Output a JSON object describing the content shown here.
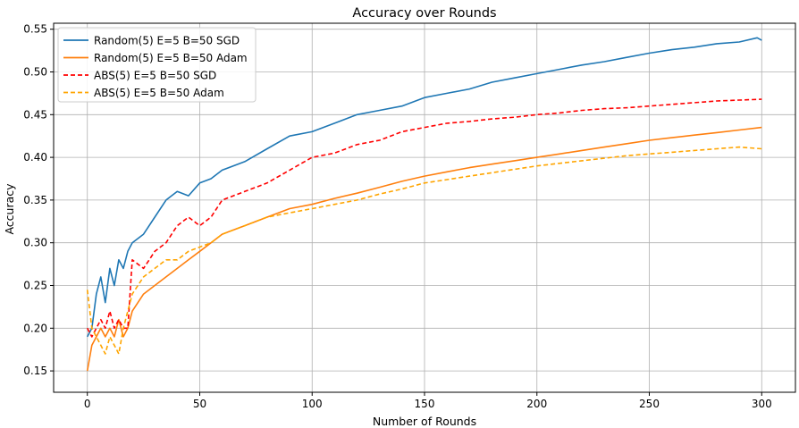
{
  "chart_data": {
    "type": "line",
    "title": "Accuracy over Rounds",
    "xlabel": "Number of Rounds",
    "ylabel": "Accuracy",
    "xlim": [
      -15,
      315
    ],
    "ylim": [
      0.125,
      0.557
    ],
    "xticks": [
      0,
      50,
      100,
      150,
      200,
      250,
      300
    ],
    "xtick_labels": [
      "0",
      "50",
      "100",
      "150",
      "200",
      "250",
      "300"
    ],
    "yticks": [
      0.15,
      0.2,
      0.25,
      0.3,
      0.35,
      0.4,
      0.45,
      0.5,
      0.55
    ],
    "ytick_labels": [
      "0.15",
      "0.20",
      "0.25",
      "0.30",
      "0.35",
      "0.40",
      "0.45",
      "0.50",
      "0.55"
    ],
    "grid": true,
    "legend_position": "top-left",
    "series": [
      {
        "name": "Random(5) E=5 B=50 SGD",
        "color": "#1f77b4",
        "dash": "solid",
        "x": [
          0,
          2,
          4,
          6,
          8,
          10,
          12,
          14,
          16,
          18,
          20,
          25,
          30,
          35,
          40,
          45,
          50,
          55,
          60,
          70,
          80,
          90,
          100,
          110,
          120,
          130,
          140,
          150,
          160,
          170,
          180,
          190,
          200,
          210,
          220,
          230,
          240,
          250,
          260,
          270,
          280,
          290,
          298,
          300
        ],
        "values": [
          0.19,
          0.2,
          0.24,
          0.26,
          0.23,
          0.27,
          0.25,
          0.28,
          0.27,
          0.29,
          0.3,
          0.31,
          0.33,
          0.35,
          0.36,
          0.355,
          0.37,
          0.375,
          0.385,
          0.395,
          0.41,
          0.425,
          0.43,
          0.44,
          0.45,
          0.455,
          0.46,
          0.47,
          0.475,
          0.48,
          0.488,
          0.493,
          0.498,
          0.503,
          0.508,
          0.512,
          0.517,
          0.522,
          0.526,
          0.529,
          0.533,
          0.535,
          0.54,
          0.537
        ]
      },
      {
        "name": "Random(5) E=5 B=50 Adam",
        "color": "#ff7f0e",
        "dash": "solid",
        "x": [
          0,
          2,
          4,
          6,
          8,
          10,
          12,
          14,
          16,
          18,
          20,
          25,
          30,
          35,
          40,
          45,
          50,
          55,
          60,
          70,
          80,
          90,
          100,
          110,
          120,
          130,
          140,
          150,
          160,
          170,
          180,
          190,
          200,
          210,
          220,
          230,
          240,
          250,
          260,
          270,
          280,
          290,
          300
        ],
        "values": [
          0.15,
          0.18,
          0.19,
          0.2,
          0.19,
          0.2,
          0.19,
          0.21,
          0.19,
          0.2,
          0.22,
          0.24,
          0.25,
          0.26,
          0.27,
          0.28,
          0.29,
          0.3,
          0.31,
          0.32,
          0.33,
          0.34,
          0.345,
          0.352,
          0.358,
          0.365,
          0.372,
          0.378,
          0.383,
          0.388,
          0.392,
          0.396,
          0.4,
          0.404,
          0.408,
          0.412,
          0.416,
          0.42,
          0.423,
          0.426,
          0.429,
          0.432,
          0.435
        ]
      },
      {
        "name": "ABS(5) E=5 B=50 SGD",
        "color": "#ff0000",
        "dash": "dashed",
        "x": [
          0,
          2,
          4,
          6,
          8,
          10,
          12,
          14,
          16,
          18,
          20,
          25,
          30,
          35,
          40,
          45,
          50,
          55,
          60,
          70,
          80,
          90,
          100,
          110,
          120,
          130,
          140,
          150,
          160,
          170,
          180,
          190,
          200,
          210,
          220,
          230,
          240,
          250,
          260,
          270,
          280,
          290,
          300
        ],
        "values": [
          0.2,
          0.19,
          0.2,
          0.21,
          0.2,
          0.22,
          0.2,
          0.21,
          0.2,
          0.2,
          0.28,
          0.27,
          0.29,
          0.3,
          0.32,
          0.33,
          0.32,
          0.33,
          0.35,
          0.36,
          0.37,
          0.385,
          0.4,
          0.405,
          0.415,
          0.42,
          0.43,
          0.435,
          0.44,
          0.442,
          0.445,
          0.447,
          0.45,
          0.452,
          0.455,
          0.457,
          0.458,
          0.46,
          0.462,
          0.464,
          0.466,
          0.467,
          0.468
        ]
      },
      {
        "name": "ABS(5) E=5 B=50 Adam",
        "color": "#ffa500",
        "dash": "dashed",
        "x": [
          0,
          2,
          4,
          6,
          8,
          10,
          12,
          14,
          16,
          18,
          20,
          25,
          30,
          35,
          40,
          45,
          50,
          55,
          60,
          70,
          80,
          90,
          100,
          110,
          120,
          130,
          140,
          150,
          160,
          170,
          180,
          190,
          200,
          210,
          220,
          230,
          240,
          250,
          260,
          270,
          280,
          290,
          300
        ],
        "values": [
          0.245,
          0.2,
          0.19,
          0.18,
          0.17,
          0.19,
          0.18,
          0.17,
          0.2,
          0.22,
          0.24,
          0.26,
          0.27,
          0.28,
          0.28,
          0.29,
          0.295,
          0.3,
          0.31,
          0.32,
          0.33,
          0.335,
          0.34,
          0.345,
          0.35,
          0.357,
          0.363,
          0.37,
          0.374,
          0.378,
          0.382,
          0.386,
          0.39,
          0.393,
          0.396,
          0.399,
          0.402,
          0.404,
          0.406,
          0.408,
          0.41,
          0.412,
          0.41
        ]
      }
    ]
  }
}
